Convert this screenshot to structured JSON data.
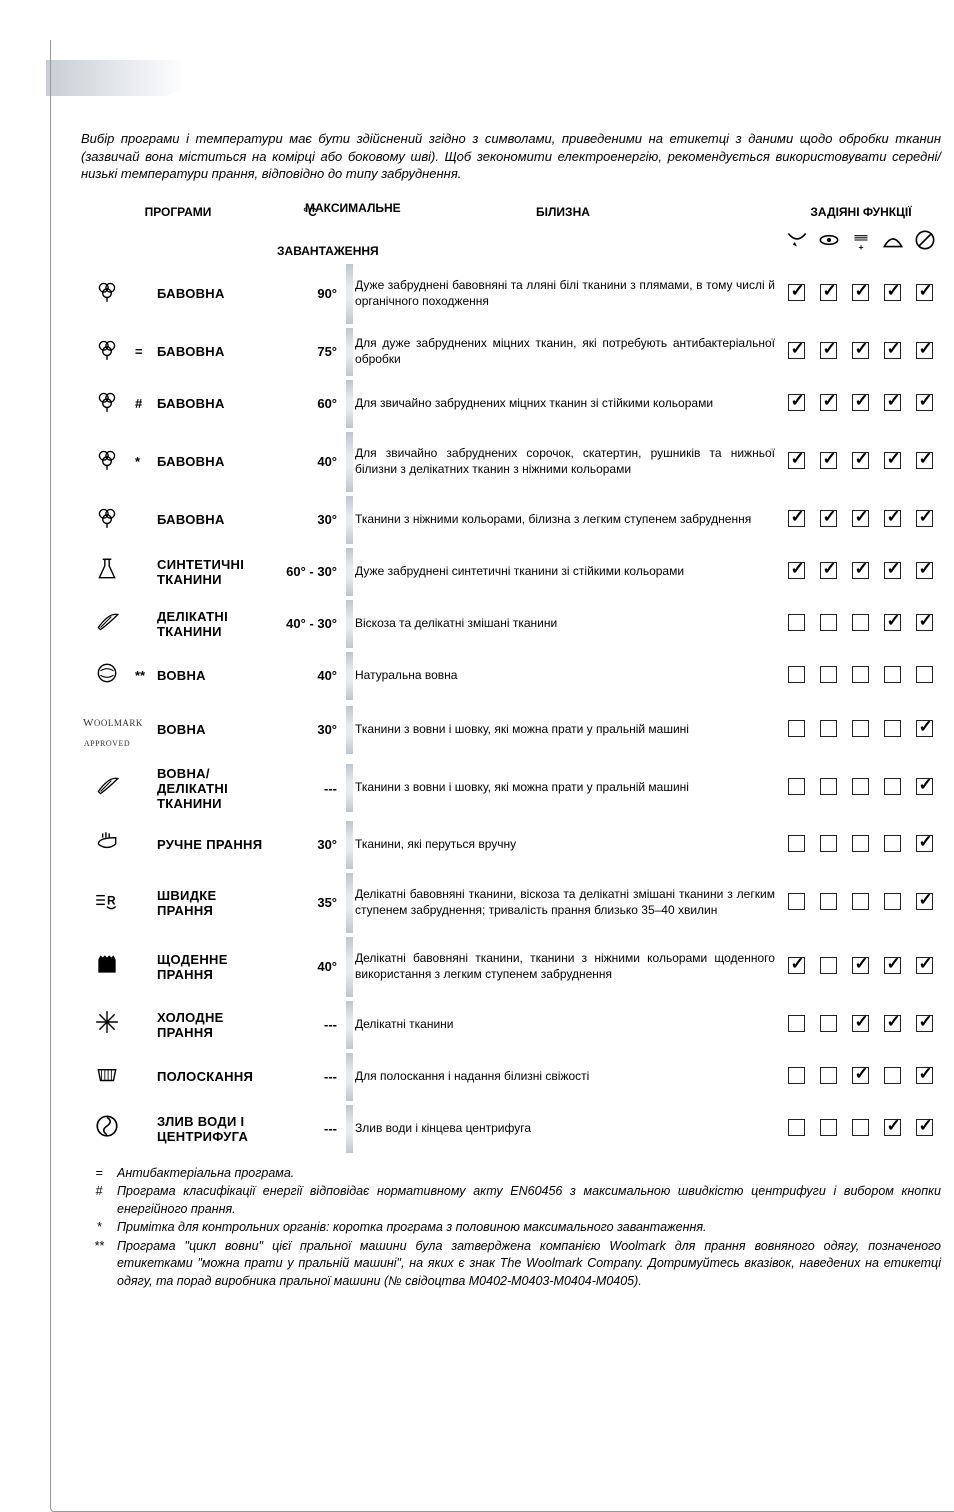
{
  "intro_text": "Вибір програми і температури має бути здійснений згідно з символами, приведеними на етикетці з даними щодо обробки тканин (зазвичай вона міститься на комірці або боковому шві). Щоб зекономити електроенергію, рекомендується використовувати середні/низькі температури прання, відповідно до типу забруднення.",
  "headers": {
    "programs": "ПРОГРАМИ",
    "temp": "°C",
    "load": "МАКСИМАЛЬНЕ ЗАВАНТАЖЕННЯ",
    "laundry": "БІЛИЗНА",
    "functions": "ЗАДІЯНІ ФУНКЦІЇ"
  },
  "function_icons": [
    "⤵",
    "👁",
    "〰",
    "△",
    "⊘"
  ],
  "rows": [
    {
      "mark": "",
      "name": "БАВОВНА",
      "temp": "90°",
      "desc": "Дуже забруднені бавовняні та лляні білі тканини з плямами, в тому числі й органічного походження",
      "fn": [
        true,
        true,
        true,
        true,
        true
      ],
      "icon": "cotton"
    },
    {
      "mark": "=",
      "name": "БАВОВНА",
      "temp": "75°",
      "desc": "Для дуже забруднених міцних тканин, які потребують антибактеріальної обробки",
      "fn": [
        true,
        true,
        true,
        true,
        true
      ],
      "icon": "cotton"
    },
    {
      "mark": "#",
      "name": "БАВОВНА",
      "temp": "60°",
      "desc": "Для звичайно забруднених міцних тканин зі стійкими кольорами",
      "fn": [
        true,
        true,
        true,
        true,
        true
      ],
      "icon": "cotton"
    },
    {
      "mark": "*",
      "name": "БАВОВНА",
      "temp": "40°",
      "desc": "Для звичайно забруднених сорочок, скатертин, рушників та нижньої білизни з делікатних тканин з ніжними кольорами",
      "fn": [
        true,
        true,
        true,
        true,
        true
      ],
      "icon": "cotton"
    },
    {
      "mark": "",
      "name": "БАВОВНА",
      "temp": "30°",
      "desc": "Тканини з ніжними кольорами, білизна з легким ступенем забруднення",
      "fn": [
        true,
        true,
        true,
        true,
        true
      ],
      "icon": "cotton-plain"
    },
    {
      "mark": "",
      "name": "СИНТЕТИЧНІ ТКАНИНИ",
      "temp": "60° - 30°",
      "desc": "Дуже забруднені синтетичні тканини зі стійкими кольорами",
      "fn": [
        true,
        true,
        true,
        true,
        true
      ],
      "icon": "flask"
    },
    {
      "mark": "",
      "name": "ДЕЛІКАТНІ ТКАНИНИ",
      "temp": "40° - 30°",
      "desc": "Віскоза та делікатні змішані тканини",
      "fn": [
        false,
        false,
        false,
        true,
        true
      ],
      "icon": "feather"
    },
    {
      "mark": "**",
      "name": "ВОВНА",
      "temp": "40°",
      "desc": "Натуральна вовна",
      "fn": [
        false,
        false,
        false,
        false,
        false
      ],
      "icon": "wool1"
    },
    {
      "mark": "",
      "name": "ВОВНА",
      "temp": "30°",
      "desc": "Тканини з вовни і шовку, які можна прати у пральній машині",
      "fn": [
        false,
        false,
        false,
        false,
        true
      ],
      "icon": "woolmark"
    },
    {
      "mark": "",
      "name": "ВОВНА/ ДЕЛІКАТНІ ТКАНИНИ",
      "temp": "---",
      "desc": "Тканини з вовни і шовку, які можна прати у пральній машині",
      "fn": [
        false,
        false,
        false,
        false,
        true
      ],
      "icon": "feather"
    },
    {
      "mark": "",
      "name": "РУЧНЕ ПРАННЯ",
      "temp": "30°",
      "desc": "Тканини, які перуться вручну",
      "fn": [
        false,
        false,
        false,
        false,
        true
      ],
      "icon": "hand"
    },
    {
      "mark": "",
      "name": "ШВИДКЕ ПРАННЯ",
      "temp": "35°",
      "desc": "Делікатні бавовняні тканини, віскоза та делікатні змішані тканини з легким ступенем забруднення; тривалість прання близько 35–40 хвилин",
      "fn": [
        false,
        false,
        false,
        false,
        true
      ],
      "icon": "quick"
    },
    {
      "mark": "",
      "name": "ЩОДЕННЕ ПРАННЯ",
      "temp": "40°",
      "desc": "Делікатні бавовняні тканини, тканини з ніжними кольорами щоденного використання з легким ступенем забруднення",
      "fn": [
        true,
        false,
        true,
        true,
        true
      ],
      "icon": "daily"
    },
    {
      "mark": "",
      "name": "ХОЛОДНЕ ПРАННЯ",
      "temp": "---",
      "desc": "Делікатні тканини",
      "fn": [
        false,
        false,
        true,
        true,
        true
      ],
      "icon": "snow"
    },
    {
      "mark": "",
      "name": "ПОЛОСКАННЯ",
      "temp": "---",
      "desc": "Для полоскання і надання білизні свіжості",
      "fn": [
        false,
        false,
        true,
        false,
        true
      ],
      "icon": "rinse"
    },
    {
      "mark": "",
      "name": "ЗЛИВ ВОДИ І ЦЕНТРИФУГА",
      "temp": "---",
      "desc": "Злив води і кінцева центрифуга",
      "fn": [
        false,
        false,
        false,
        true,
        true
      ],
      "icon": "spin"
    }
  ],
  "footnotes": [
    {
      "sym": "=",
      "text": "Антибактеріальна програма."
    },
    {
      "sym": "#",
      "text": "Програма класифікації енергії відповідає нормативному акту EN60456 з максимальною швидкістю центрифуги і вибором кнопки енергійного прання."
    },
    {
      "sym": "*",
      "text": "Примітка для контрольних органів: коротка програма з половиною  максимального завантаження."
    },
    {
      "sym": "**",
      "text": "Програма \"цикл вовни\" цієї пральної машини була затверджена компанією Woolmark для прання вовняного одягу, позначеного етикетками \"можна прати у пральній машині\", на яких є знак The Woolmark Company. Дотримуйтесь вказівок, наведених на етикетці одягу, та порад виробника пральної машини (№ свідоцтва M0402-M0403-M0404-M0405)."
    }
  ],
  "colors": {
    "bar_light": "#e8ebee",
    "bar_dark": "#bfc6cd",
    "border": "#999999",
    "text": "#000000"
  }
}
